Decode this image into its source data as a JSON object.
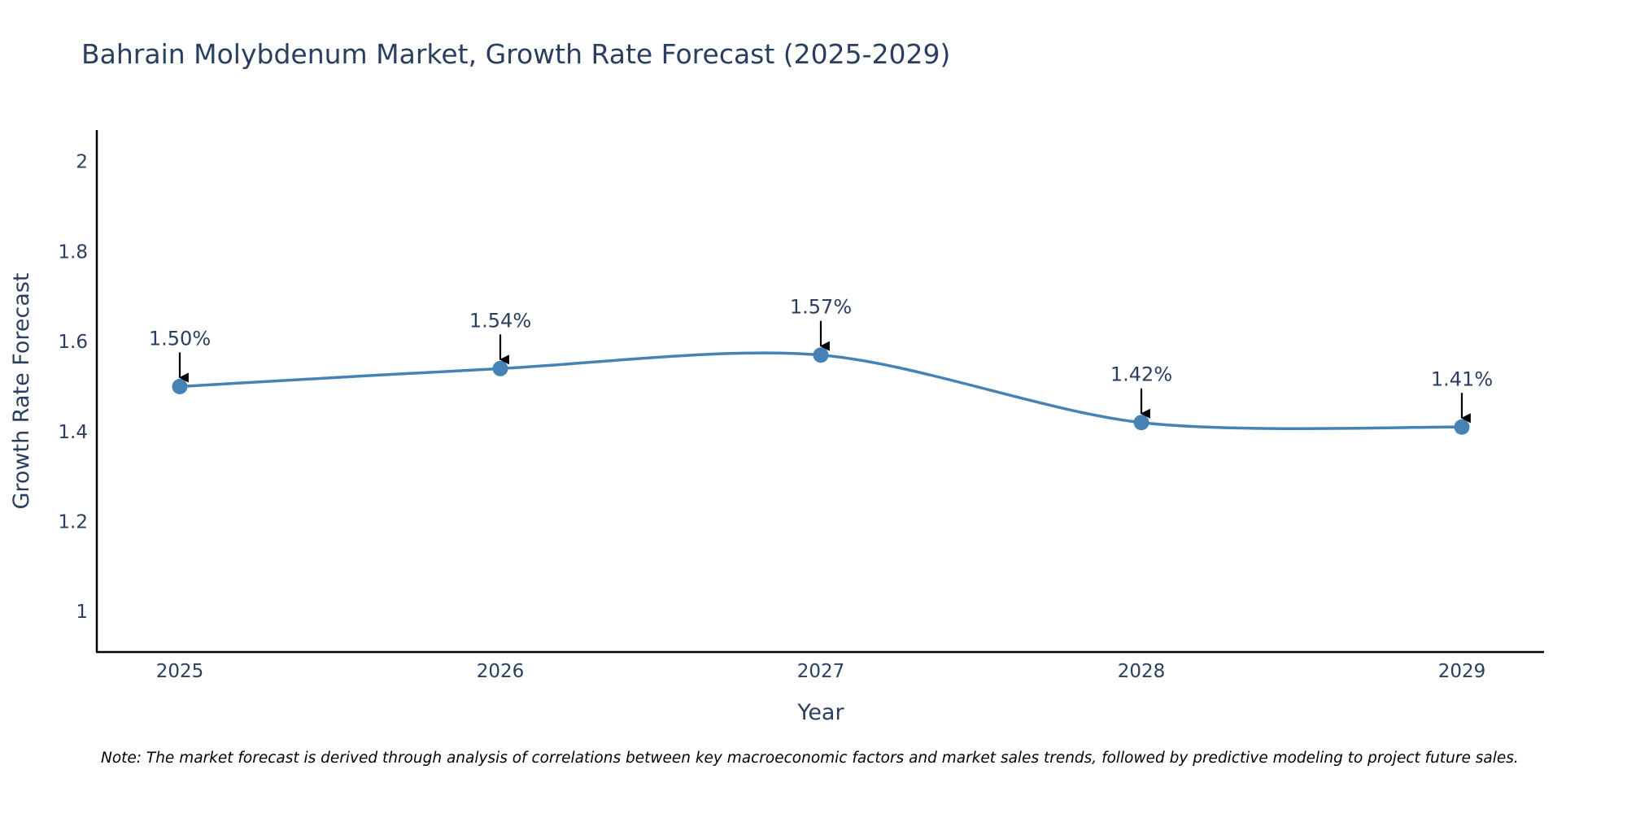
{
  "colors": {
    "line": "#4682b4",
    "marker": "#4682b4",
    "axis": "#000000",
    "text": "#2a3f5f",
    "arrow": "#000000"
  },
  "chart_data": {
    "type": "line",
    "title": "Bahrain Molybdenum Market, Growth Rate Forecast (2025-2029)",
    "xlabel": "Year",
    "ylabel": "Growth Rate Forecast",
    "categories": [
      "2025",
      "2026",
      "2027",
      "2028",
      "2029"
    ],
    "series": [
      {
        "name": "Growth Rate Forecast",
        "values": [
          1.5,
          1.54,
          1.57,
          1.42,
          1.41
        ],
        "line_shape": "spline"
      }
    ],
    "annotations": [
      "1.50%",
      "1.54%",
      "1.57%",
      "1.42%",
      "1.41%"
    ],
    "ylim": [
      0.91,
      2.07
    ],
    "yticks": [
      1,
      1.2,
      1.4,
      1.6,
      1.8,
      2
    ],
    "ytick_labels": [
      "1",
      "1.2",
      "1.4",
      "1.6",
      "1.8",
      "2"
    ],
    "grid": false,
    "legend": "none",
    "note": "Note: The market forecast is derived through analysis of correlations between key macroeconomic factors and market sales trends, followed by predictive modeling to project future sales."
  }
}
